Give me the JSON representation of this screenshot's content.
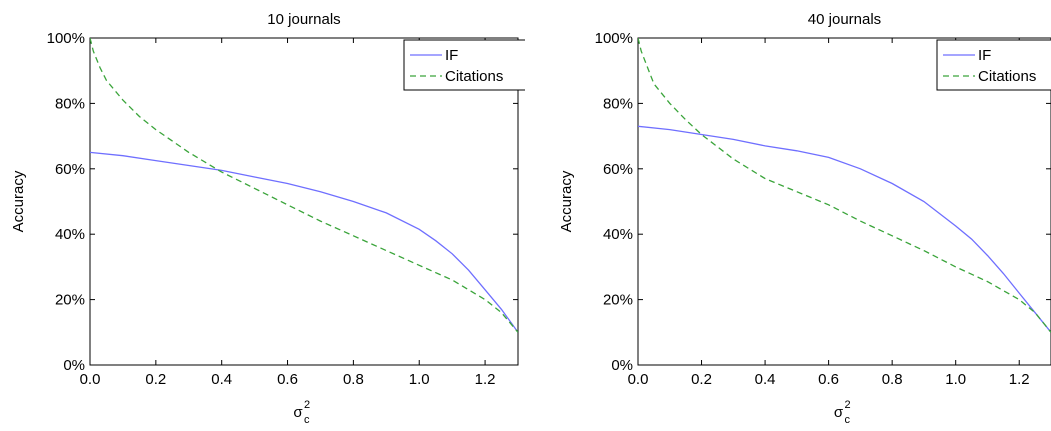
{
  "chart_data": [
    {
      "type": "line",
      "title": "10 journals",
      "xlabel": "σ",
      "xlabel_sup": "2",
      "xlabel_sub": "c",
      "ylabel": "Accuracy",
      "xlim": [
        0,
        1.3
      ],
      "ylim": [
        0,
        100
      ],
      "xticks": [
        "0.0",
        "0.2",
        "0.4",
        "0.6",
        "0.8",
        "1.0",
        "1.2"
      ],
      "xtick_values": [
        0,
        0.2,
        0.4,
        0.6,
        0.8,
        1.0,
        1.2
      ],
      "yticks": [
        "0%",
        "20%",
        "40%",
        "60%",
        "80%",
        "100%"
      ],
      "ytick_values": [
        0,
        20,
        40,
        60,
        80,
        100
      ],
      "legend_position": "top-right",
      "grid": false,
      "series": [
        {
          "name": "IF",
          "color": "#6f6fff",
          "style": "solid",
          "x": [
            0.0,
            0.1,
            0.2,
            0.3,
            0.4,
            0.5,
            0.6,
            0.7,
            0.8,
            0.9,
            1.0,
            1.05,
            1.1,
            1.15,
            1.2,
            1.25,
            1.3
          ],
          "y": [
            65,
            64,
            62.5,
            61,
            59.5,
            57.5,
            55.5,
            53,
            50,
            46.5,
            41.5,
            38,
            34,
            29,
            23,
            17,
            10
          ]
        },
        {
          "name": "Citations",
          "color": "#3aa43a",
          "style": "dashed",
          "x": [
            0.0,
            0.01,
            0.03,
            0.05,
            0.1,
            0.15,
            0.2,
            0.3,
            0.4,
            0.5,
            0.6,
            0.7,
            0.8,
            0.9,
            1.0,
            1.1,
            1.2,
            1.25,
            1.3
          ],
          "y": [
            100,
            96,
            91,
            87,
            81,
            76,
            72,
            65,
            59,
            54,
            49,
            44,
            39.5,
            35,
            30.5,
            26,
            20,
            16,
            10
          ]
        }
      ]
    },
    {
      "type": "line",
      "title": "40 journals",
      "xlabel": "σ",
      "xlabel_sup": "2",
      "xlabel_sub": "c",
      "ylabel": "Accuracy",
      "xlim": [
        0,
        1.3
      ],
      "ylim": [
        0,
        100
      ],
      "xticks": [
        "0.0",
        "0.2",
        "0.4",
        "0.6",
        "0.8",
        "1.0",
        "1.2"
      ],
      "xtick_values": [
        0,
        0.2,
        0.4,
        0.6,
        0.8,
        1.0,
        1.2
      ],
      "yticks": [
        "0%",
        "20%",
        "40%",
        "60%",
        "80%",
        "100%"
      ],
      "ytick_values": [
        0,
        20,
        40,
        60,
        80,
        100
      ],
      "legend_position": "top-right",
      "grid": false,
      "series": [
        {
          "name": "IF",
          "color": "#6f6fff",
          "style": "solid",
          "x": [
            0.0,
            0.1,
            0.2,
            0.3,
            0.4,
            0.5,
            0.6,
            0.7,
            0.8,
            0.9,
            1.0,
            1.05,
            1.1,
            1.15,
            1.2,
            1.25,
            1.3
          ],
          "y": [
            73,
            72,
            70.5,
            69,
            67,
            65.5,
            63.5,
            60,
            55.5,
            50,
            42.5,
            38.5,
            33.5,
            28,
            22,
            16,
            10
          ]
        },
        {
          "name": "Citations",
          "color": "#3aa43a",
          "style": "dashed",
          "x": [
            0.0,
            0.01,
            0.03,
            0.05,
            0.1,
            0.15,
            0.2,
            0.3,
            0.4,
            0.5,
            0.6,
            0.7,
            0.8,
            0.9,
            1.0,
            1.1,
            1.2,
            1.25,
            1.3
          ],
          "y": [
            100,
            96,
            91,
            86,
            80,
            75,
            70.5,
            63,
            57,
            53,
            49,
            44,
            39.5,
            35,
            30,
            25.5,
            20,
            16,
            10
          ]
        }
      ]
    }
  ]
}
